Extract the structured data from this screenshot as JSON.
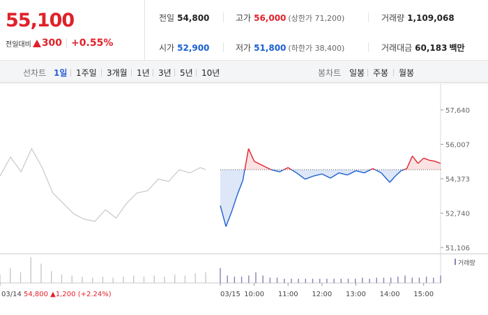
{
  "summary": {
    "price": "55,100",
    "change_label": "전일대비",
    "change_value": "300",
    "change_pct": "+0.55%",
    "prev_close": {
      "label": "전일",
      "value": "54,800"
    },
    "high": {
      "label": "고가",
      "value": "56,000",
      "sub": "(상한가 71,200)"
    },
    "volume": {
      "label": "거래량",
      "value": "1,109,068"
    },
    "open": {
      "label": "시가",
      "value": "52,900"
    },
    "low": {
      "label": "저가",
      "value": "51,800",
      "sub": "(하한가 38,400)"
    },
    "amount": {
      "label": "거래대금",
      "value": "60,183",
      "unit": "백만"
    }
  },
  "toolbar": {
    "line_label": "선차트",
    "line_periods": [
      "1일",
      "1주일",
      "3개월",
      "1년",
      "3년",
      "5년",
      "10년"
    ],
    "active_period": "1일",
    "candle_label": "봉차트",
    "candle_periods": [
      "일봉",
      "주봉",
      "월봉"
    ]
  },
  "chart_data": {
    "type": "line",
    "y_ticks": [
      "57,640",
      "56,007",
      "54,373",
      "52,740",
      "51,106"
    ],
    "ylim": [
      51106,
      57640
    ],
    "reference_line": 54800,
    "x_labels": [
      "03/14",
      "03/15",
      "10:00",
      "11:00",
      "12:00",
      "13:00",
      "14:00",
      "15:00"
    ],
    "prev_day_caption": {
      "date": "03/14",
      "close": "54,800",
      "change": "1,200",
      "pct": "(+2.24%)"
    },
    "volume_legend": "거래량",
    "series": [
      {
        "name": "03/14",
        "x": [
          "09:00",
          "09:20",
          "09:40",
          "10:00",
          "10:20",
          "10:40",
          "11:00",
          "11:20",
          "11:40",
          "12:00",
          "12:20",
          "12:40",
          "13:00",
          "13:20",
          "13:40",
          "14:00",
          "14:20",
          "14:40",
          "15:00",
          "15:20",
          "15:30"
        ],
        "values": [
          54500,
          55400,
          54700,
          55800,
          54900,
          53700,
          53200,
          52700,
          52450,
          52350,
          52900,
          52500,
          53200,
          53700,
          53800,
          54350,
          54250,
          54800,
          54650,
          54900,
          54800
        ]
      },
      {
        "name": "03/15",
        "x": [
          "09:00",
          "09:10",
          "09:20",
          "09:30",
          "09:40",
          "09:50",
          "10:00",
          "10:15",
          "10:30",
          "10:45",
          "11:00",
          "11:15",
          "11:30",
          "11:45",
          "12:00",
          "12:15",
          "12:30",
          "12:45",
          "13:00",
          "13:15",
          "13:30",
          "13:45",
          "14:00",
          "14:10",
          "14:20",
          "14:30",
          "14:40",
          "14:50",
          "15:00",
          "15:10",
          "15:20",
          "15:30"
        ],
        "values": [
          53100,
          52100,
          52800,
          53600,
          54300,
          55800,
          55200,
          55000,
          54800,
          54700,
          54900,
          54650,
          54350,
          54500,
          54600,
          54400,
          54650,
          54550,
          54750,
          54650,
          54850,
          54650,
          54200,
          54500,
          54750,
          54850,
          55450,
          55100,
          55350,
          55250,
          55200,
          55100
        ]
      }
    ],
    "volume": {
      "prev_day": [
        8,
        14,
        10,
        24,
        18,
        11,
        8,
        7,
        6,
        5,
        6,
        5,
        6,
        7,
        6,
        7,
        6,
        8,
        7,
        9,
        10
      ],
      "today": [
        14,
        7,
        6,
        6,
        7,
        10,
        7,
        5,
        5,
        4,
        4,
        4,
        4,
        4,
        4,
        4,
        4,
        4,
        4,
        4,
        5,
        4,
        5,
        5,
        5,
        6,
        7,
        5,
        5,
        6,
        5,
        7
      ]
    }
  },
  "colors": {
    "up": "#e0212a",
    "down": "#1a5fcf",
    "prev_line": "#c8c8c8",
    "active_tab": "#2b5fd4"
  }
}
